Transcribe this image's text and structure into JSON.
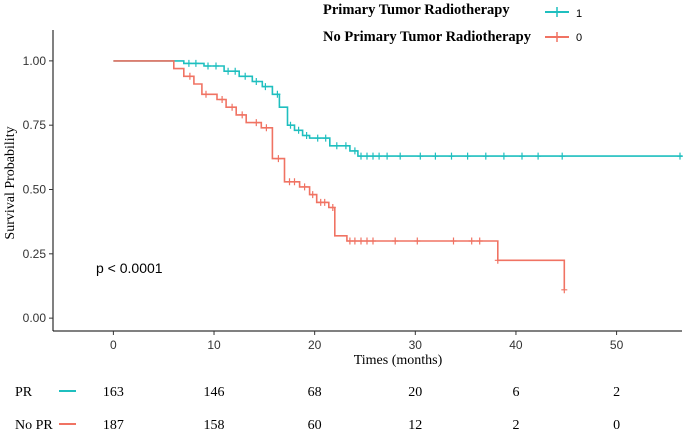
{
  "chart_data": {
    "type": "line",
    "subtype": "kaplan-meier",
    "xlabel": "Times (months)",
    "ylabel": "Survival Probability",
    "xlim": [
      -6,
      56.5
    ],
    "ylim": [
      -0.05,
      1.12
    ],
    "xticks": [
      0,
      10,
      20,
      30,
      40,
      50
    ],
    "yticks": [
      0.0,
      0.25,
      0.5,
      0.75,
      1.0
    ],
    "ytick_labels": [
      "0.00",
      "0.25",
      "0.50",
      "0.75",
      "1.00"
    ],
    "grid": false,
    "annotation": "p < 0.0001",
    "legend": {
      "position": "top-right",
      "entries": [
        {
          "title": "Primary Tumor Radiotherapy",
          "code": "1",
          "series": "PR"
        },
        {
          "title": "No Primary Tumor Radiotherapy",
          "code": "0",
          "series": "No PR"
        }
      ]
    },
    "series": [
      {
        "name": "PR",
        "color": "#1fbfbf",
        "steps": [
          [
            0,
            1.0
          ],
          [
            7,
            0.99
          ],
          [
            9,
            0.98
          ],
          [
            11,
            0.96
          ],
          [
            12.5,
            0.94
          ],
          [
            13.8,
            0.92
          ],
          [
            14.8,
            0.9
          ],
          [
            15.8,
            0.87
          ],
          [
            16.5,
            0.82
          ],
          [
            17.3,
            0.75
          ],
          [
            18,
            0.73
          ],
          [
            18.8,
            0.71
          ],
          [
            19.5,
            0.7
          ],
          [
            21.5,
            0.67
          ],
          [
            23.5,
            0.65
          ],
          [
            24.3,
            0.63
          ],
          [
            56.5,
            0.63
          ]
        ],
        "censor_times": [
          7.5,
          8.2,
          9.4,
          10.2,
          11.4,
          12.1,
          13.1,
          14.2,
          15.1,
          16.3,
          17.6,
          18.4,
          19.2,
          20.3,
          21.1,
          22.2,
          23.1,
          24.0,
          24.6,
          25.2,
          25.8,
          26.4,
          27.2,
          28.5,
          30.5,
          32.0,
          33.6,
          35.2,
          37.0,
          38.8,
          40.6,
          42.2,
          44.6,
          56.3
        ]
      },
      {
        "name": "No PR",
        "color": "#f07363",
        "steps": [
          [
            0,
            1.0
          ],
          [
            6,
            0.97
          ],
          [
            7,
            0.94
          ],
          [
            8,
            0.91
          ],
          [
            8.8,
            0.87
          ],
          [
            10.3,
            0.85
          ],
          [
            11.2,
            0.82
          ],
          [
            12.2,
            0.79
          ],
          [
            13.2,
            0.76
          ],
          [
            14.7,
            0.74
          ],
          [
            15.8,
            0.62
          ],
          [
            17,
            0.53
          ],
          [
            18.5,
            0.51
          ],
          [
            19.5,
            0.48
          ],
          [
            20.2,
            0.45
          ],
          [
            21.4,
            0.43
          ],
          [
            22,
            0.32
          ],
          [
            23.2,
            0.3
          ],
          [
            38.2,
            0.225
          ],
          [
            44.8,
            0.11
          ]
        ],
        "censor_times": [
          7.6,
          9.2,
          10.8,
          11.8,
          12.8,
          14.2,
          15.2,
          16.4,
          17.5,
          18.0,
          19.0,
          19.8,
          20.6,
          21.0,
          21.8,
          23.5,
          24.0,
          24.6,
          25.2,
          25.8,
          28.0,
          30.2,
          33.8,
          35.6,
          36.4,
          38.2,
          44.8
        ]
      }
    ],
    "risk_table": {
      "times": [
        0,
        10,
        20,
        30,
        40,
        50
      ],
      "rows": [
        {
          "label": "PR",
          "color": "#1fbfbf",
          "values": [
            163,
            146,
            68,
            20,
            6,
            2
          ]
        },
        {
          "label": "No PR",
          "color": "#f07363",
          "values": [
            187,
            158,
            60,
            12,
            2,
            0
          ]
        }
      ]
    }
  }
}
